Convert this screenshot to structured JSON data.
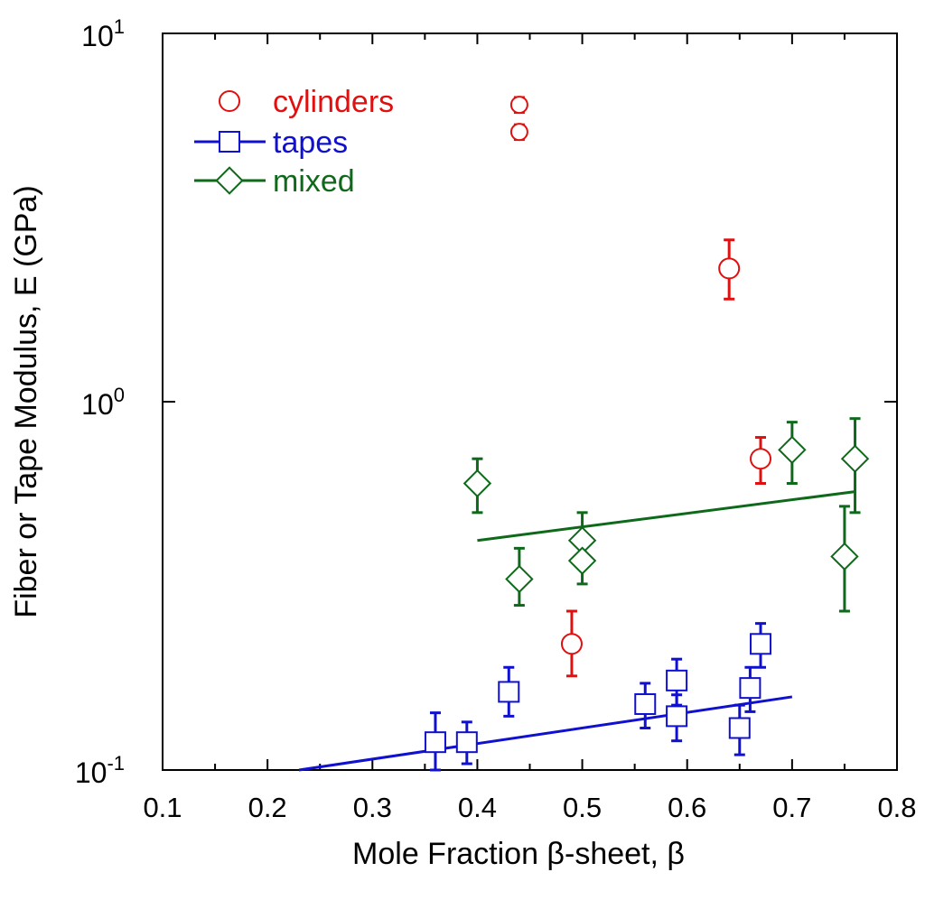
{
  "chart_data": {
    "type": "scatter",
    "xlabel": "Mole Fraction β-sheet, β",
    "ylabel": "Fiber or Tape Modulus, E (GPa)",
    "xlim": [
      0.1,
      0.8
    ],
    "ylim": [
      0.1,
      10
    ],
    "yscale": "log",
    "grid": false,
    "legend_position": "top-left",
    "x_ticks": [
      "0.1",
      "0.2",
      "0.3",
      "0.4",
      "0.5",
      "0.6",
      "0.7",
      "0.8"
    ],
    "y_ticks": [
      {
        "base": "10",
        "exp": "-1",
        "value": 0.1
      },
      {
        "base": "10",
        "exp": "0",
        "value": 1
      },
      {
        "base": "10",
        "exp": "1",
        "value": 10
      }
    ],
    "series": [
      {
        "name": "cylinders",
        "marker": "circle",
        "color": "#e01010",
        "points": [
          {
            "x": 0.44,
            "y": 6.4,
            "lo": 6.1,
            "hi": 6.7
          },
          {
            "x": 0.44,
            "y": 5.4,
            "lo": 5.15,
            "hi": 5.65
          },
          {
            "x": 0.64,
            "y": 2.3,
            "lo": 1.9,
            "hi": 2.75
          },
          {
            "x": 0.67,
            "y": 0.7,
            "lo": 0.6,
            "hi": 0.8
          },
          {
            "x": 0.49,
            "y": 0.22,
            "lo": 0.18,
            "hi": 0.27
          }
        ]
      },
      {
        "name": "tapes",
        "marker": "square",
        "color": "#1010d0",
        "points": [
          {
            "x": 0.36,
            "y": 0.119,
            "lo": 0.1,
            "hi": 0.143
          },
          {
            "x": 0.39,
            "y": 0.119,
            "lo": 0.104,
            "hi": 0.135
          },
          {
            "x": 0.43,
            "y": 0.163,
            "lo": 0.14,
            "hi": 0.19
          },
          {
            "x": 0.56,
            "y": 0.151,
            "lo": 0.13,
            "hi": 0.172
          },
          {
            "x": 0.59,
            "y": 0.175,
            "lo": 0.15,
            "hi": 0.2
          },
          {
            "x": 0.59,
            "y": 0.14,
            "lo": 0.12,
            "hi": 0.16
          },
          {
            "x": 0.65,
            "y": 0.13,
            "lo": 0.11,
            "hi": 0.15
          },
          {
            "x": 0.66,
            "y": 0.167,
            "lo": 0.144,
            "hi": 0.19
          },
          {
            "x": 0.67,
            "y": 0.22,
            "lo": 0.19,
            "hi": 0.25
          }
        ],
        "fit": [
          [
            0.23,
            0.1
          ],
          [
            0.7,
            0.158
          ]
        ]
      },
      {
        "name": "mixed",
        "marker": "diamond",
        "color": "#0e6a1a",
        "points": [
          {
            "x": 0.4,
            "y": 0.6,
            "lo": 0.5,
            "hi": 0.7
          },
          {
            "x": 0.44,
            "y": 0.33,
            "lo": 0.28,
            "hi": 0.4
          },
          {
            "x": 0.5,
            "y": 0.42,
            "lo": 0.37,
            "hi": 0.5
          },
          {
            "x": 0.5,
            "y": 0.37,
            "lo": 0.32,
            "hi": 0.42
          },
          {
            "x": 0.7,
            "y": 0.74,
            "lo": 0.6,
            "hi": 0.88
          },
          {
            "x": 0.75,
            "y": 0.38,
            "lo": 0.27,
            "hi": 0.52
          },
          {
            "x": 0.76,
            "y": 0.7,
            "lo": 0.5,
            "hi": 0.9
          }
        ],
        "fit": [
          [
            0.4,
            0.42
          ],
          [
            0.76,
            0.57
          ]
        ]
      }
    ]
  }
}
